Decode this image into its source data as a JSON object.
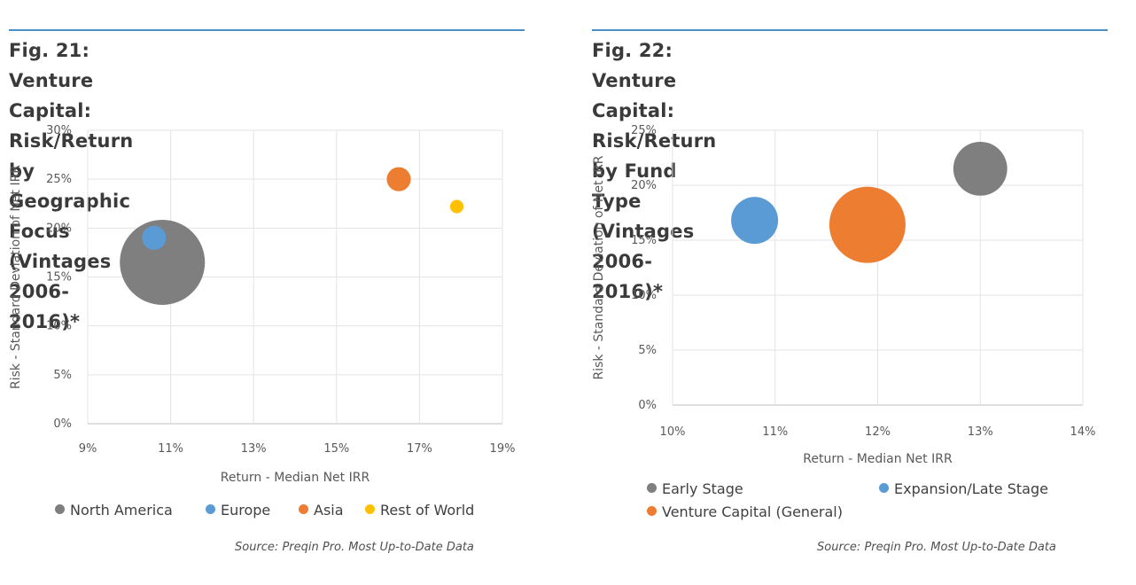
{
  "chart_data": [
    {
      "type": "scatter",
      "title": "Fig. 21: Venture Capital: Risk/Return by Geographic Focus (Vintages 2006-2016)*",
      "title_lines": [
        "Fig. 21: Venture Capital: Risk/Return by",
        "Geographic Focus (Vintages 2006-2016)*"
      ],
      "xlabel": "Return - Median Net IRR",
      "ylabel": "Risk - Standard Deviation of Net IRR",
      "xlim": [
        9,
        19
      ],
      "ylim": [
        0,
        30
      ],
      "x_ticks": [
        "9%",
        "11%",
        "13%",
        "15%",
        "17%",
        "19%"
      ],
      "y_ticks": [
        "0%",
        "5%",
        "10%",
        "15%",
        "20%",
        "25%",
        "30%"
      ],
      "grid": true,
      "legend_position": "bottom",
      "series": [
        {
          "name": "North America",
          "color": "#7f7f7f",
          "x": 10.8,
          "y": 16.5,
          "size": 100
        },
        {
          "name": "Europe",
          "color": "#5b9bd5",
          "x": 10.6,
          "y": 19.0,
          "size": 8
        },
        {
          "name": "Asia",
          "color": "#ed7d31",
          "x": 16.5,
          "y": 25.0,
          "size": 8
        },
        {
          "name": "Rest of World",
          "color": "#ffc000",
          "x": 17.9,
          "y": 22.2,
          "size": 2.5
        }
      ],
      "source": "Source: Preqin Pro. Most Up-to-Date Data"
    },
    {
      "type": "scatter",
      "title": "Fig. 22: Venture Capital: Risk/Return by Fund Type (Vintages 2006-2016)*",
      "title_lines": [
        "Fig. 22: Venture Capital: Risk/Return by Fund",
        "Type (Vintages 2006-2016)*"
      ],
      "xlabel": "Return - Median Net IRR",
      "ylabel": "Risk - Standard Deviation of Net IRR",
      "xlim": [
        10,
        14
      ],
      "ylim": [
        0,
        25
      ],
      "x_ticks": [
        "10%",
        "11%",
        "12%",
        "13%",
        "14%"
      ],
      "y_ticks": [
        "0%",
        "5%",
        "10%",
        "15%",
        "20%",
        "25%"
      ],
      "grid": true,
      "legend_position": "bottom",
      "series": [
        {
          "name": "Early Stage",
          "color": "#7f7f7f",
          "x": 13.0,
          "y": 21.5,
          "size": 50
        },
        {
          "name": "Expansion/Late Stage",
          "color": "#5b9bd5",
          "x": 10.8,
          "y": 16.8,
          "size": 38
        },
        {
          "name": "Venture Capital (General)",
          "color": "#ed7d31",
          "x": 11.9,
          "y": 16.4,
          "size": 100
        }
      ],
      "source": "Source: Preqin Pro. Most Up-to-Date Data"
    }
  ]
}
